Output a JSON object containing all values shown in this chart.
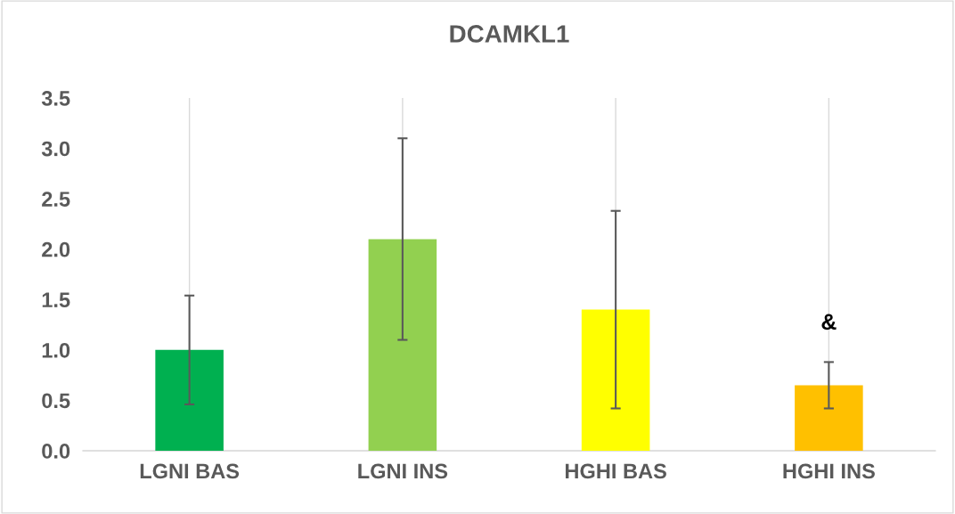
{
  "chart_data": {
    "type": "bar",
    "title": "DCAMKL1",
    "categories": [
      "LGNI BAS",
      "LGNI INS",
      "HGHI BAS",
      "HGHI INS"
    ],
    "values": [
      1.0,
      2.1,
      1.4,
      0.65
    ],
    "errors": [
      0.54,
      1.0,
      0.98,
      0.23
    ],
    "colors": [
      "#00b050",
      "#92d050",
      "#ffff00",
      "#ffc000"
    ],
    "ylim": [
      0,
      3.5
    ],
    "yticks": [
      {
        "value": 0,
        "label": "0.0"
      },
      {
        "value": 0.5,
        "label": "0.5"
      },
      {
        "value": 1,
        "label": "1.0"
      },
      {
        "value": 1.5,
        "label": "1.5"
      },
      {
        "value": 2,
        "label": "2.0"
      },
      {
        "value": 2.5,
        "label": "2.5"
      },
      {
        "value": 3,
        "label": "3.0"
      },
      {
        "value": 3.5,
        "label": "3.5"
      }
    ],
    "grid": "x",
    "annotations": [
      "&"
    ]
  }
}
